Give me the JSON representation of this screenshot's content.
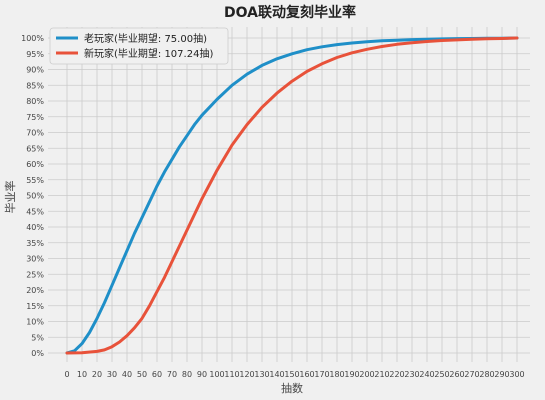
{
  "chart_data": {
    "type": "line",
    "title": "DOA联动复刻毕业率",
    "xlabel": "抽数",
    "ylabel": "毕业率",
    "xlim": [
      0,
      300
    ],
    "ylim": [
      0,
      100
    ],
    "xticks": [
      0,
      10,
      20,
      30,
      40,
      50,
      60,
      70,
      80,
      90,
      100,
      110,
      120,
      130,
      140,
      150,
      160,
      170,
      180,
      190,
      200,
      210,
      220,
      230,
      240,
      250,
      260,
      270,
      280,
      290,
      300
    ],
    "yticks": [
      0,
      5,
      10,
      15,
      20,
      25,
      30,
      35,
      40,
      45,
      50,
      55,
      60,
      65,
      70,
      75,
      80,
      85,
      90,
      95,
      100
    ],
    "ytick_suffix": "%",
    "grid": true,
    "legend_position": "top-left",
    "series": [
      {
        "name": "老玩家(毕业期望: 75.00抽)",
        "color": "#1f8fc8",
        "x": [
          0,
          5,
          10,
          15,
          20,
          25,
          30,
          35,
          40,
          45,
          50,
          55,
          60,
          65,
          70,
          75,
          80,
          85,
          90,
          95,
          100,
          110,
          120,
          130,
          140,
          150,
          160,
          170,
          180,
          190,
          200,
          210,
          220,
          230,
          240,
          250,
          260,
          270,
          280,
          290,
          300
        ],
        "y": [
          0,
          0.7,
          3,
          6.5,
          11,
          16,
          21.5,
          27,
          32.5,
          38,
          43,
          48,
          53,
          57.5,
          61.5,
          65.5,
          69,
          72.5,
          75.5,
          78,
          80.5,
          85,
          88.5,
          91.3,
          93.4,
          95,
          96.3,
          97.2,
          97.9,
          98.4,
          98.8,
          99.1,
          99.3,
          99.5,
          99.6,
          99.7,
          99.8,
          99.85,
          99.9,
          99.95,
          100
        ]
      },
      {
        "name": "新玩家(毕业期望: 107.24抽)",
        "color": "#e8523a",
        "x": [
          0,
          10,
          20,
          25,
          30,
          35,
          40,
          45,
          50,
          55,
          60,
          65,
          70,
          75,
          80,
          85,
          90,
          95,
          100,
          110,
          120,
          130,
          140,
          150,
          160,
          170,
          180,
          190,
          200,
          210,
          220,
          230,
          240,
          250,
          260,
          270,
          280,
          290,
          300
        ],
        "y": [
          0,
          0.1,
          0.5,
          1,
          2,
          3.5,
          5.5,
          8,
          11,
          15,
          19.5,
          24,
          29,
          34,
          39,
          44,
          49,
          53.5,
          58,
          66,
          72.5,
          78,
          82.5,
          86.3,
          89.4,
          91.8,
          93.8,
          95.3,
          96.4,
          97.3,
          98,
          98.5,
          98.9,
          99.2,
          99.4,
          99.6,
          99.75,
          99.85,
          100
        ]
      }
    ]
  }
}
